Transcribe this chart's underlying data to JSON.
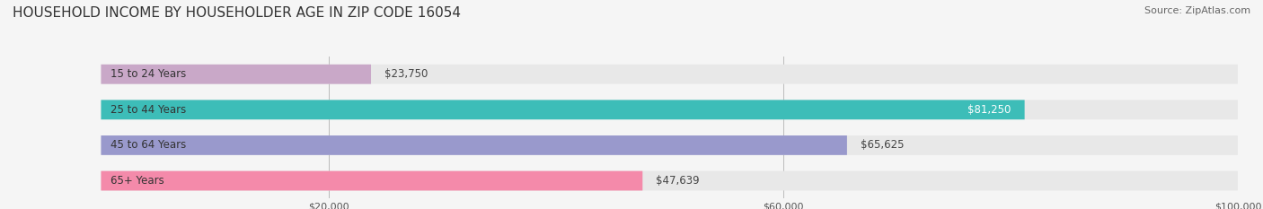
{
  "title": "HOUSEHOLD INCOME BY HOUSEHOLDER AGE IN ZIP CODE 16054",
  "source": "Source: ZipAtlas.com",
  "categories": [
    "15 to 24 Years",
    "25 to 44 Years",
    "45 to 64 Years",
    "65+ Years"
  ],
  "values": [
    23750,
    81250,
    65625,
    47639
  ],
  "bar_colors": [
    "#c9a8c8",
    "#3dbdb8",
    "#9999cc",
    "#f48aaa"
  ],
  "bar_bg_color": "#e8e8e8",
  "label_colors": [
    "#555555",
    "#ffffff",
    "#555555",
    "#555555"
  ],
  "xlim": [
    0,
    100000
  ],
  "xticks": [
    20000,
    60000,
    100000
  ],
  "xtick_labels": [
    "$20,000",
    "$60,000",
    "$100,000"
  ],
  "title_fontsize": 11,
  "source_fontsize": 8,
  "bar_label_fontsize": 8.5,
  "category_fontsize": 8.5,
  "background_color": "#f5f5f5"
}
